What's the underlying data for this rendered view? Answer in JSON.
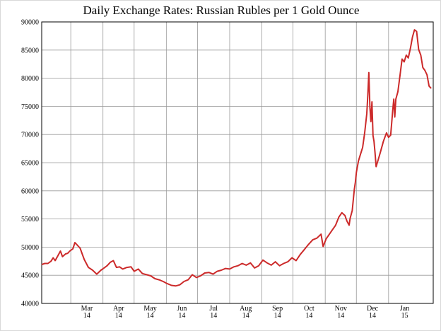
{
  "chart_data": {
    "type": "line",
    "title": "Daily Exchange Rates: Russian Rubles per 1 Gold Ounce",
    "xlabel": "",
    "ylabel": "",
    "ylim": [
      40000,
      90000
    ],
    "y_ticks": [
      40000,
      45000,
      50000,
      55000,
      60000,
      65000,
      70000,
      75000,
      80000,
      85000,
      90000
    ],
    "x_range": [
      "2014-02-01",
      "2015-02-13"
    ],
    "grid": true,
    "x_tick_labels": [
      {
        "month": "Mar",
        "year": "14",
        "date": "2014-03-01"
      },
      {
        "month": "Apr",
        "year": "14",
        "date": "2014-04-01"
      },
      {
        "month": "May",
        "year": "14",
        "date": "2014-05-01"
      },
      {
        "month": "Jun",
        "year": "14",
        "date": "2014-06-01"
      },
      {
        "month": "Jul",
        "year": "14",
        "date": "2014-07-01"
      },
      {
        "month": "Aug",
        "year": "14",
        "date": "2014-08-01"
      },
      {
        "month": "Sep",
        "year": "14",
        "date": "2014-09-01"
      },
      {
        "month": "Oct",
        "year": "14",
        "date": "2014-10-01"
      },
      {
        "month": "Nov",
        "year": "14",
        "date": "2014-11-01"
      },
      {
        "month": "Dec",
        "year": "14",
        "date": "2014-12-01"
      },
      {
        "month": "Jan",
        "year": "15",
        "date": "2015-01-01"
      }
    ],
    "colors": {
      "line": "#cc2a2a",
      "grid": "#9a9a9a",
      "axis": "#000000"
    },
    "series": [
      {
        "x": [
          "2014-02-01",
          "2014-02-04",
          "2014-02-07",
          "2014-02-10",
          "2014-02-12",
          "2014-02-14",
          "2014-02-17",
          "2014-02-19",
          "2014-02-21",
          "2014-02-24",
          "2014-02-26",
          "2014-02-28",
          "2014-03-03",
          "2014-03-05",
          "2014-03-07",
          "2014-03-10",
          "2014-03-12",
          "2014-03-14",
          "2014-03-18",
          "2014-03-22",
          "2014-03-26",
          "2014-03-30",
          "2014-04-02",
          "2014-04-05",
          "2014-04-08",
          "2014-04-11",
          "2014-04-14",
          "2014-04-17",
          "2014-04-20",
          "2014-04-24",
          "2014-04-28",
          "2014-05-01",
          "2014-05-05",
          "2014-05-09",
          "2014-05-13",
          "2014-05-17",
          "2014-05-21",
          "2014-05-25",
          "2014-05-29",
          "2014-06-02",
          "2014-06-06",
          "2014-06-10",
          "2014-06-14",
          "2014-06-18",
          "2014-06-22",
          "2014-06-26",
          "2014-06-30",
          "2014-07-04",
          "2014-07-08",
          "2014-07-12",
          "2014-07-16",
          "2014-07-20",
          "2014-07-24",
          "2014-07-28",
          "2014-08-01",
          "2014-08-05",
          "2014-08-09",
          "2014-08-13",
          "2014-08-17",
          "2014-08-21",
          "2014-08-25",
          "2014-08-29",
          "2014-09-02",
          "2014-09-06",
          "2014-09-10",
          "2014-09-14",
          "2014-09-18",
          "2014-09-22",
          "2014-09-26",
          "2014-09-30",
          "2014-10-04",
          "2014-10-08",
          "2014-10-12",
          "2014-10-16",
          "2014-10-20",
          "2014-10-24",
          "2014-10-28",
          "2014-10-30",
          "2014-11-02",
          "2014-11-05",
          "2014-11-08",
          "2014-11-11",
          "2014-11-14",
          "2014-11-17",
          "2014-11-20",
          "2014-11-22",
          "2014-11-24",
          "2014-11-25",
          "2014-11-27",
          "2014-11-28",
          "2014-11-29",
          "2014-11-30",
          "2014-12-01",
          "2014-12-03",
          "2014-12-05",
          "2014-12-07",
          "2014-12-09",
          "2014-12-11",
          "2014-12-12",
          "2014-12-13",
          "2014-12-14",
          "2014-12-15",
          "2014-12-16",
          "2014-12-17",
          "2014-12-18",
          "2014-12-19",
          "2014-12-20",
          "2014-12-22",
          "2014-12-24",
          "2014-12-27",
          "2014-12-30",
          "2015-01-01",
          "2015-01-03",
          "2015-01-05",
          "2015-01-06",
          "2015-01-07",
          "2015-01-08",
          "2015-01-10",
          "2015-01-12",
          "2015-01-14",
          "2015-01-16",
          "2015-01-18",
          "2015-01-20",
          "2015-01-22",
          "2015-01-24",
          "2015-01-26",
          "2015-01-28",
          "2015-01-30",
          "2015-02-01",
          "2015-02-03",
          "2015-02-05",
          "2015-02-07",
          "2015-02-09",
          "2015-02-11"
        ],
        "y": [
          46900,
          47100,
          47100,
          47500,
          48100,
          47600,
          48600,
          49300,
          48300,
          48800,
          48900,
          49300,
          49700,
          50800,
          50400,
          49800,
          48800,
          47800,
          46400,
          45900,
          45200,
          45900,
          46300,
          46700,
          47300,
          47600,
          46400,
          46500,
          46100,
          46400,
          46500,
          45700,
          46100,
          45300,
          45100,
          44900,
          44400,
          44200,
          43900,
          43500,
          43200,
          43100,
          43300,
          43900,
          44200,
          45100,
          44600,
          44900,
          45400,
          45500,
          45200,
          45700,
          45900,
          46200,
          46100,
          46500,
          46700,
          47100,
          46800,
          47200,
          46300,
          46700,
          47700,
          47200,
          46800,
          47400,
          46700,
          47100,
          47400,
          48100,
          47600,
          48700,
          49600,
          50500,
          51300,
          51600,
          52300,
          50100,
          51500,
          52300,
          53100,
          53900,
          55300,
          56100,
          55600,
          54600,
          53900,
          55100,
          56500,
          58300,
          60200,
          61500,
          63300,
          65300,
          66500,
          67700,
          70300,
          73700,
          76900,
          81000,
          74900,
          72300,
          75800,
          69800,
          68800,
          66700,
          64300,
          65500,
          66800,
          68800,
          70300,
          69500,
          69900,
          74300,
          76300,
          73100,
          76300,
          77600,
          80500,
          83400,
          82900,
          84100,
          83600,
          85300,
          87300,
          88600,
          88300,
          85100,
          84100,
          81900,
          81400,
          80600,
          78600,
          78200
        ]
      }
    ]
  }
}
